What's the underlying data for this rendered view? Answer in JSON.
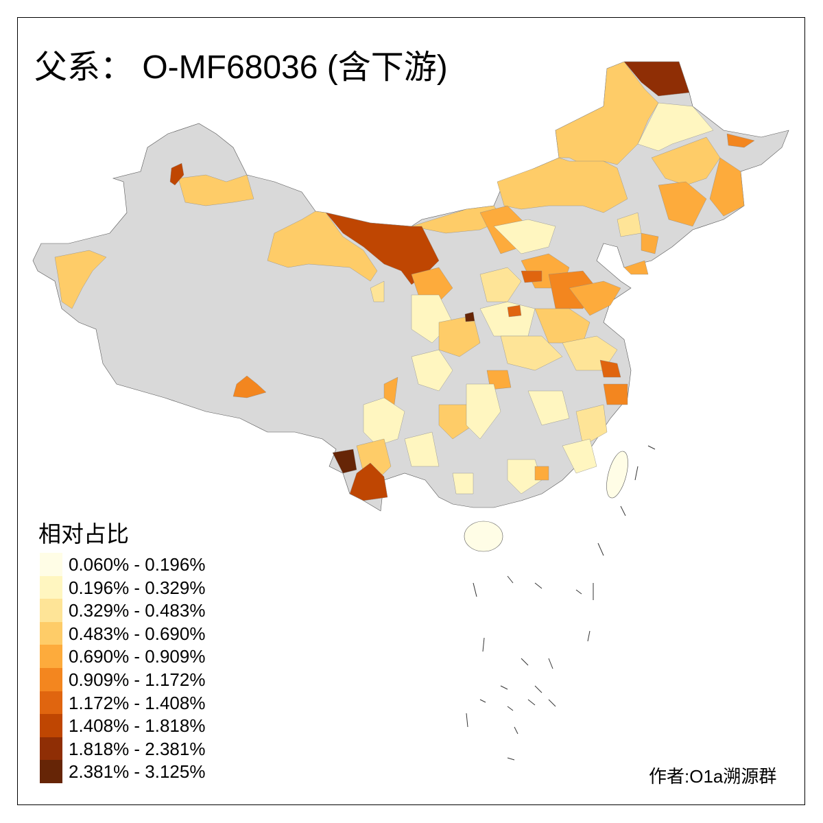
{
  "title": "父系： O-MF68036 (含下游)",
  "legend": {
    "title": "相对占比",
    "classes": [
      {
        "label": "0.060% - 0.196%",
        "color": "#fffde6"
      },
      {
        "label": "0.196% - 0.329%",
        "color": "#fff6c0"
      },
      {
        "label": "0.329% - 0.483%",
        "color": "#fee497"
      },
      {
        "label": "0.483% - 0.690%",
        "color": "#fecc68"
      },
      {
        "label": "0.690% - 0.909%",
        "color": "#fdab3c"
      },
      {
        "label": "0.909% - 1.172%",
        "color": "#f3861f"
      },
      {
        "label": "1.172% - 1.408%",
        "color": "#e0650f"
      },
      {
        "label": "1.408% - 1.818%",
        "color": "#bf4602"
      },
      {
        "label": "1.818% - 2.381%",
        "color": "#8f2e05"
      },
      {
        "label": "2.381% - 3.125%",
        "color": "#662506"
      }
    ],
    "no_data_color": "#d9d9d9"
  },
  "author": "作者:O1a溯源群"
}
